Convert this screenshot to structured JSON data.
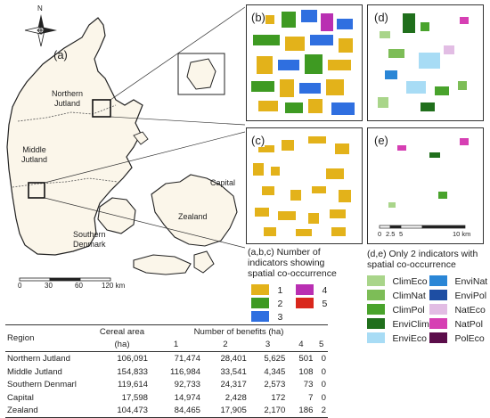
{
  "map": {
    "panel_a": "(a)",
    "panel_b": "(b)",
    "panel_c": "(c)",
    "panel_d": "(d)",
    "panel_e": "(e)",
    "north": "N",
    "regions": {
      "northern": "Northern\nJutland",
      "middle": "Middle\nJutland",
      "southern": "Southern\nDenmark",
      "capital": "Capital",
      "zealand": "Zealand"
    },
    "scale_main": [
      "0",
      "30",
      "60",
      "120 km"
    ],
    "scale_small": [
      "0",
      "2.5",
      "5",
      "10 km"
    ]
  },
  "legend_abc": {
    "title": "(a,b,c) Number of\nindicators showing\nspatial co-occurrence",
    "items": [
      {
        "label": "1",
        "color": "#e3b21a"
      },
      {
        "label": "4",
        "color": "#b92fb2"
      },
      {
        "label": "2",
        "color": "#3e9a22"
      },
      {
        "label": "5",
        "color": "#d9271c"
      },
      {
        "label": "3",
        "color": "#2f6fe0"
      }
    ]
  },
  "legend_de": {
    "title": "(d,e) Only 2 indicators with\nspatial co-occurrence",
    "items": [
      {
        "label": "ClimEco",
        "color": "#a9d58a"
      },
      {
        "label": "EnviNat",
        "color": "#2a86d6"
      },
      {
        "label": "ClimNat",
        "color": "#7dbd57"
      },
      {
        "label": "EnviPol",
        "color": "#1e4ea3"
      },
      {
        "label": "ClimPol",
        "color": "#49a32c"
      },
      {
        "label": "NatEco",
        "color": "#e2bde4"
      },
      {
        "label": "EnviClim",
        "color": "#206f1c"
      },
      {
        "label": "NatPol",
        "color": "#d63fb3"
      },
      {
        "label": "EnviEco",
        "color": "#a8dcf5"
      },
      {
        "label": "PolEco",
        "color": "#5b0d4a"
      }
    ]
  },
  "table": {
    "col_region": "Region",
    "col_area": "Cereal area",
    "col_area_unit": "(ha)",
    "col_benefits": "Number of benefits (ha)",
    "benefit_cols": [
      "1",
      "2",
      "3",
      "4",
      "5"
    ],
    "rows": [
      {
        "region": "Northern Jutland",
        "area": "106,091",
        "b1": "71,474",
        "b2": "28,401",
        "b3": "5,625",
        "b4": "501",
        "b5": "0"
      },
      {
        "region": "Middle Jutland",
        "area": "154,833",
        "b1": "116,984",
        "b2": "33,541",
        "b3": "4,345",
        "b4": "108",
        "b5": "0"
      },
      {
        "region": "Southern Denmarl",
        "area": "119,614",
        "b1": "92,733",
        "b2": "24,317",
        "b3": "2,573",
        "b4": "73",
        "b5": "0"
      },
      {
        "region": "Capital",
        "area": "17,598",
        "b1": "14,974",
        "b2": "2,428",
        "b3": "172",
        "b4": "7",
        "b5": "0"
      },
      {
        "region": "Zealand",
        "area": "104,473",
        "b1": "84,465",
        "b2": "17,905",
        "b3": "2,170",
        "b4": "186",
        "b5": "2"
      }
    ]
  }
}
